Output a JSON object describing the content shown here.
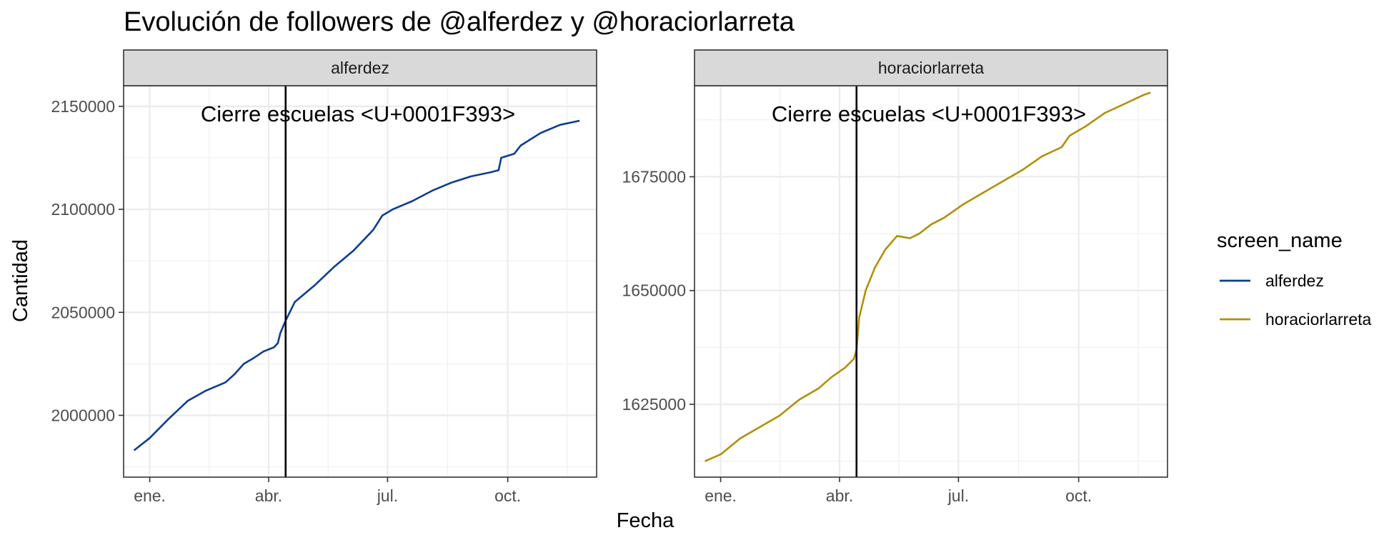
{
  "chart_data": {
    "type": "line",
    "title": "Evolución de followers de @alferdez y @horaciorlarreta",
    "xlabel": "Fecha",
    "ylabel": "Cantidad",
    "x_tick_labels": [
      "ene.",
      "abr.",
      "jul.",
      "oct."
    ],
    "x_tick_dates": [
      "2020-01-01",
      "2020-04-01",
      "2020-07-01",
      "2020-10-01"
    ],
    "xlim": [
      "2019-12-12",
      "2020-12-08"
    ],
    "grid": true,
    "legend": {
      "title": "screen_name",
      "position": "right",
      "entries": [
        "alferdez",
        "horaciorlarreta"
      ]
    },
    "colors": {
      "alferdez": "#0b3e91",
      "horaciorlarreta": "#b0900a"
    },
    "annotation": {
      "text": "Cierre escuelas <U+0001F393>",
      "vline_date": "2020-04-14"
    },
    "panels": [
      {
        "strip": "alferdez",
        "series": "alferdez",
        "ylim": [
          1970000,
          2160000
        ],
        "y_ticks": [
          2000000,
          2050000,
          2100000,
          2150000
        ],
        "y_tick_labels": [
          "2000000",
          "2050000",
          "2100000",
          "2150000"
        ],
        "points": [
          [
            "2019-12-20",
            1983000
          ],
          [
            "2020-01-01",
            1989000
          ],
          [
            "2020-01-15",
            1998000
          ],
          [
            "2020-01-30",
            2007000
          ],
          [
            "2020-02-13",
            2012000
          ],
          [
            "2020-02-28",
            2016000
          ],
          [
            "2020-03-06",
            2020000
          ],
          [
            "2020-03-13",
            2025000
          ],
          [
            "2020-03-21",
            2028000
          ],
          [
            "2020-03-28",
            2031000
          ],
          [
            "2020-04-05",
            2033000
          ],
          [
            "2020-04-08",
            2035000
          ],
          [
            "2020-04-10",
            2040000
          ],
          [
            "2020-04-14",
            2046000
          ],
          [
            "2020-04-21",
            2055000
          ],
          [
            "2020-05-06",
            2063000
          ],
          [
            "2020-05-21",
            2072000
          ],
          [
            "2020-06-05",
            2080000
          ],
          [
            "2020-06-20",
            2090000
          ],
          [
            "2020-06-27",
            2097000
          ],
          [
            "2020-07-05",
            2100000
          ],
          [
            "2020-07-20",
            2104000
          ],
          [
            "2020-08-04",
            2109000
          ],
          [
            "2020-08-19",
            2113000
          ],
          [
            "2020-09-03",
            2116000
          ],
          [
            "2020-09-18",
            2118000
          ],
          [
            "2020-09-24",
            2119000
          ],
          [
            "2020-09-26",
            2125000
          ],
          [
            "2020-10-06",
            2127000
          ],
          [
            "2020-10-11",
            2131000
          ],
          [
            "2020-10-26",
            2137000
          ],
          [
            "2020-11-10",
            2141000
          ],
          [
            "2020-11-25",
            2143000
          ]
        ]
      },
      {
        "strip": "horaciorlarreta",
        "series": "horaciorlarreta",
        "ylim": [
          1609000,
          1695000
        ],
        "y_ticks": [
          1625000,
          1650000,
          1675000
        ],
        "y_tick_labels": [
          "1625000",
          "1650000",
          "1675000"
        ],
        "points": [
          [
            "2019-12-20",
            1612500
          ],
          [
            "2020-01-01",
            1614000
          ],
          [
            "2020-01-16",
            1617500
          ],
          [
            "2020-01-31",
            1620000
          ],
          [
            "2020-02-15",
            1622500
          ],
          [
            "2020-03-01",
            1626000
          ],
          [
            "2020-03-16",
            1628500
          ],
          [
            "2020-03-26",
            1631000
          ],
          [
            "2020-04-05",
            1633000
          ],
          [
            "2020-04-12",
            1635000
          ],
          [
            "2020-04-14",
            1637000
          ],
          [
            "2020-04-16",
            1644000
          ],
          [
            "2020-04-21",
            1650000
          ],
          [
            "2020-04-28",
            1655000
          ],
          [
            "2020-05-06",
            1659000
          ],
          [
            "2020-05-15",
            1662000
          ],
          [
            "2020-05-25",
            1661500
          ],
          [
            "2020-06-01",
            1662500
          ],
          [
            "2020-06-10",
            1664500
          ],
          [
            "2020-06-20",
            1666000
          ],
          [
            "2020-07-05",
            1669000
          ],
          [
            "2020-07-20",
            1671500
          ],
          [
            "2020-08-04",
            1674000
          ],
          [
            "2020-08-19",
            1676500
          ],
          [
            "2020-09-03",
            1679500
          ],
          [
            "2020-09-18",
            1681500
          ],
          [
            "2020-09-24",
            1684000
          ],
          [
            "2020-10-06",
            1686000
          ],
          [
            "2020-10-21",
            1689000
          ],
          [
            "2020-11-05",
            1691000
          ],
          [
            "2020-11-20",
            1693000
          ],
          [
            "2020-11-25",
            1693500
          ]
        ]
      }
    ]
  }
}
